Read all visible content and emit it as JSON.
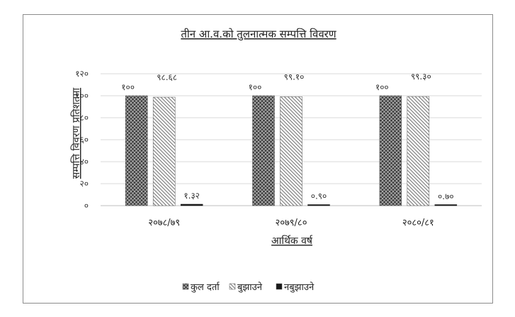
{
  "chart_data": {
    "type": "bar",
    "title": "तीन आ.व.को तुलनात्मक सम्पत्ति विवरण",
    "xlabel": "आर्थिक वर्ष",
    "ylabel": "सम्पत्ति विवरण प्रतिशतमा",
    "ylim": [
      0,
      120
    ],
    "yticks": [
      0,
      20,
      40,
      60,
      80,
      100,
      120
    ],
    "ytick_labels": [
      "०",
      "२०",
      "४०",
      "६०",
      "८०",
      "१००",
      "१२०"
    ],
    "categories": [
      "२०७८/७९",
      "२०७९/८०",
      "२०८०/८१"
    ],
    "series": [
      {
        "name": "कुल दर्ता",
        "values": [
          100,
          100,
          100
        ],
        "labels": [
          "१००",
          "१००",
          "१००"
        ]
      },
      {
        "name": "बुझाउने",
        "values": [
          98.68,
          99.1,
          99.3
        ],
        "labels": [
          "९८.६८",
          "९९.१०",
          "९९.३०"
        ]
      },
      {
        "name": "नबुझाउने",
        "values": [
          1.32,
          0.9,
          0.7
        ],
        "labels": [
          "१.३२",
          "०.९०",
          "०.७०"
        ]
      }
    ],
    "grid": true,
    "legend_position": "bottom"
  }
}
